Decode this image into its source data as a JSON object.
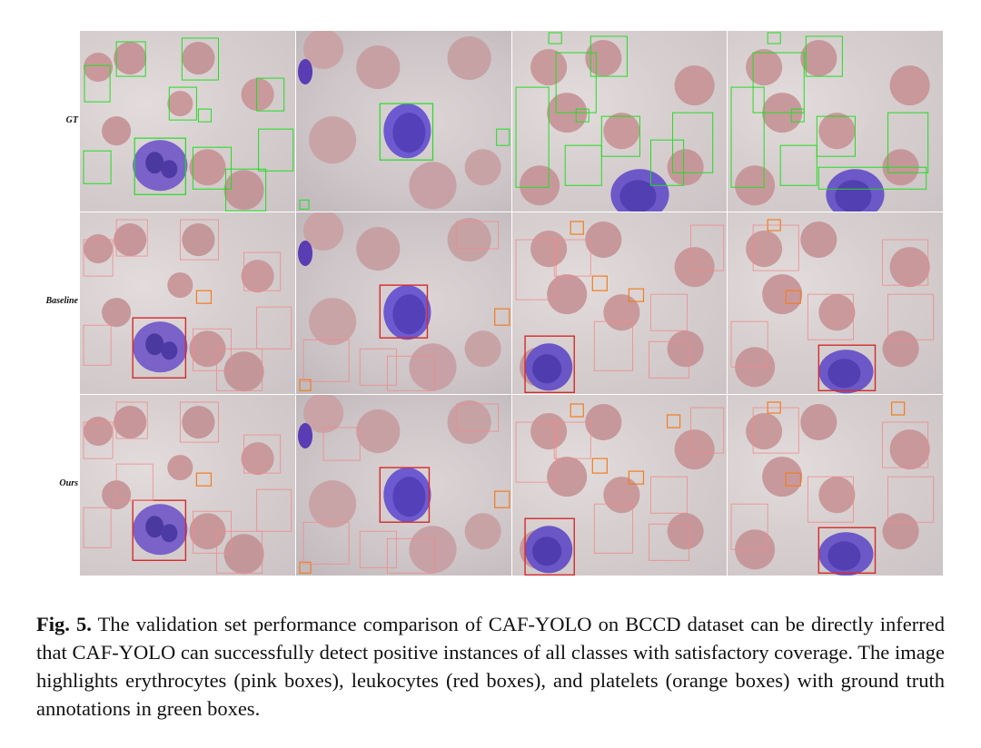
{
  "figure": {
    "row_labels": [
      "GT",
      "Baseline",
      "Ours"
    ],
    "colors": {
      "rbc_box": "#f08a8a",
      "wbc_box": "#d32c2c",
      "platelet_box": "#f07d22",
      "gt_box": "#22dd22",
      "rbc_cell": "#c99a9c",
      "wbc_cell": "#6a4fc4",
      "background": "#d8d0d1"
    }
  },
  "caption": {
    "label": "Fig. 5.",
    "text": "The validation set performance comparison of CAF-YOLO on BCCD dataset can be directly inferred that CAF-YOLO can successfully detect positive instances of all classes with satisfactory coverage. The image highlights erythrocytes (pink boxes), leukocytes (red boxes), and platelets (orange boxes) with ground truth annotations in green boxes."
  }
}
